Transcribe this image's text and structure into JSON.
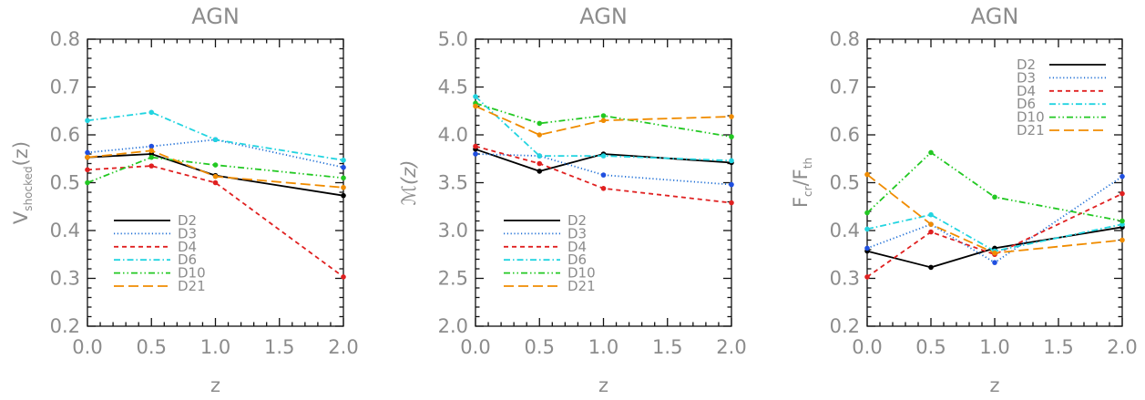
{
  "chart_data": [
    {
      "type": "line",
      "title": "AGN",
      "xlabel": "z",
      "ylabel": "V(z)",
      "ylabel_sub": "shocked",
      "xlim": [
        0.0,
        2.0
      ],
      "ylim": [
        0.2,
        0.8
      ],
      "x_ticks": [
        "0.0",
        "0.5",
        "1.0",
        "1.5",
        "2.0"
      ],
      "y_ticks": [
        "0.2",
        "0.3",
        "0.4",
        "0.5",
        "0.6",
        "0.7",
        "0.8"
      ],
      "x": [
        0.0,
        0.5,
        1.0,
        2.0
      ],
      "legend_position": "lower-left",
      "series": [
        {
          "name": "D2",
          "values": [
            0.553,
            0.56,
            0.515,
            0.473
          ]
        },
        {
          "name": "D3",
          "values": [
            0.563,
            0.576,
            0.59,
            0.532
          ]
        },
        {
          "name": "D4",
          "values": [
            0.527,
            0.535,
            0.5,
            0.303
          ]
        },
        {
          "name": "D6",
          "values": [
            0.63,
            0.647,
            0.59,
            0.547
          ]
        },
        {
          "name": "D10",
          "values": [
            0.5,
            0.553,
            0.537,
            0.51
          ]
        },
        {
          "name": "D21",
          "values": [
            0.553,
            0.567,
            0.513,
            0.49
          ]
        }
      ]
    },
    {
      "type": "line",
      "title": "AGN",
      "xlabel": "z",
      "ylabel": "ℳ(z)",
      "xlim": [
        0.0,
        2.0
      ],
      "ylim": [
        2.0,
        5.0
      ],
      "x_ticks": [
        "0.0",
        "0.5",
        "1.0",
        "1.5",
        "2.0"
      ],
      "y_ticks": [
        "2.0",
        "2.5",
        "3.0",
        "3.5",
        "4.0",
        "4.5",
        "5.0"
      ],
      "x": [
        0.0,
        0.5,
        1.0,
        2.0
      ],
      "legend_position": "lower-left",
      "series": [
        {
          "name": "D2",
          "values": [
            3.85,
            3.62,
            3.8,
            3.71
          ]
        },
        {
          "name": "D3",
          "values": [
            3.8,
            3.78,
            3.58,
            3.48
          ]
        },
        {
          "name": "D4",
          "values": [
            3.88,
            3.7,
            3.44,
            3.29
          ]
        },
        {
          "name": "D6",
          "values": [
            4.4,
            3.78,
            3.78,
            3.73
          ]
        },
        {
          "name": "D10",
          "values": [
            4.33,
            4.12,
            4.2,
            3.98
          ]
        },
        {
          "name": "D21",
          "values": [
            4.3,
            4.0,
            4.15,
            4.19
          ]
        }
      ]
    },
    {
      "type": "line",
      "title": "AGN",
      "xlabel": "z",
      "ylabel": "F/F",
      "ylabel_sub1": "cr",
      "ylabel_sub2": "th",
      "xlim": [
        0.0,
        2.0
      ],
      "ylim": [
        0.2,
        0.8
      ],
      "x_ticks": [
        "0.0",
        "0.5",
        "1.0",
        "1.5",
        "2.0"
      ],
      "y_ticks": [
        "0.2",
        "0.3",
        "0.4",
        "0.5",
        "0.6",
        "0.7",
        "0.8"
      ],
      "x": [
        0.0,
        0.5,
        1.0,
        2.0
      ],
      "legend_position": "top-right",
      "series": [
        {
          "name": "D2",
          "values": [
            0.357,
            0.323,
            0.363,
            0.407
          ]
        },
        {
          "name": "D3",
          "values": [
            0.363,
            0.413,
            0.333,
            0.513
          ]
        },
        {
          "name": "D4",
          "values": [
            0.303,
            0.397,
            0.35,
            0.477
          ]
        },
        {
          "name": "D6",
          "values": [
            0.403,
            0.433,
            0.357,
            0.413
          ]
        },
        {
          "name": "D10",
          "values": [
            0.437,
            0.563,
            0.47,
            0.42
          ]
        },
        {
          "name": "D21",
          "values": [
            0.517,
            0.413,
            0.353,
            0.38
          ]
        }
      ]
    }
  ],
  "series_styles": [
    {
      "name": "D2",
      "color": "#000000",
      "dash": "solid",
      "marker_color": "#000000"
    },
    {
      "name": "D3",
      "color": "#1f6fd6",
      "dash": "dotted",
      "marker_color": "#1f4fe0"
    },
    {
      "name": "D4",
      "color": "#e02020",
      "dash": "dashed",
      "marker_color": "#e02020"
    },
    {
      "name": "D6",
      "color": "#22d4e0",
      "dash": "dash-dot",
      "marker_color": "#22d4e0"
    },
    {
      "name": "D10",
      "color": "#22c822",
      "dash": "dash-dot-dot",
      "marker_color": "#22c822"
    },
    {
      "name": "D21",
      "color": "#f08c00",
      "dash": "long-dash",
      "marker_color": "#f08c00"
    }
  ]
}
